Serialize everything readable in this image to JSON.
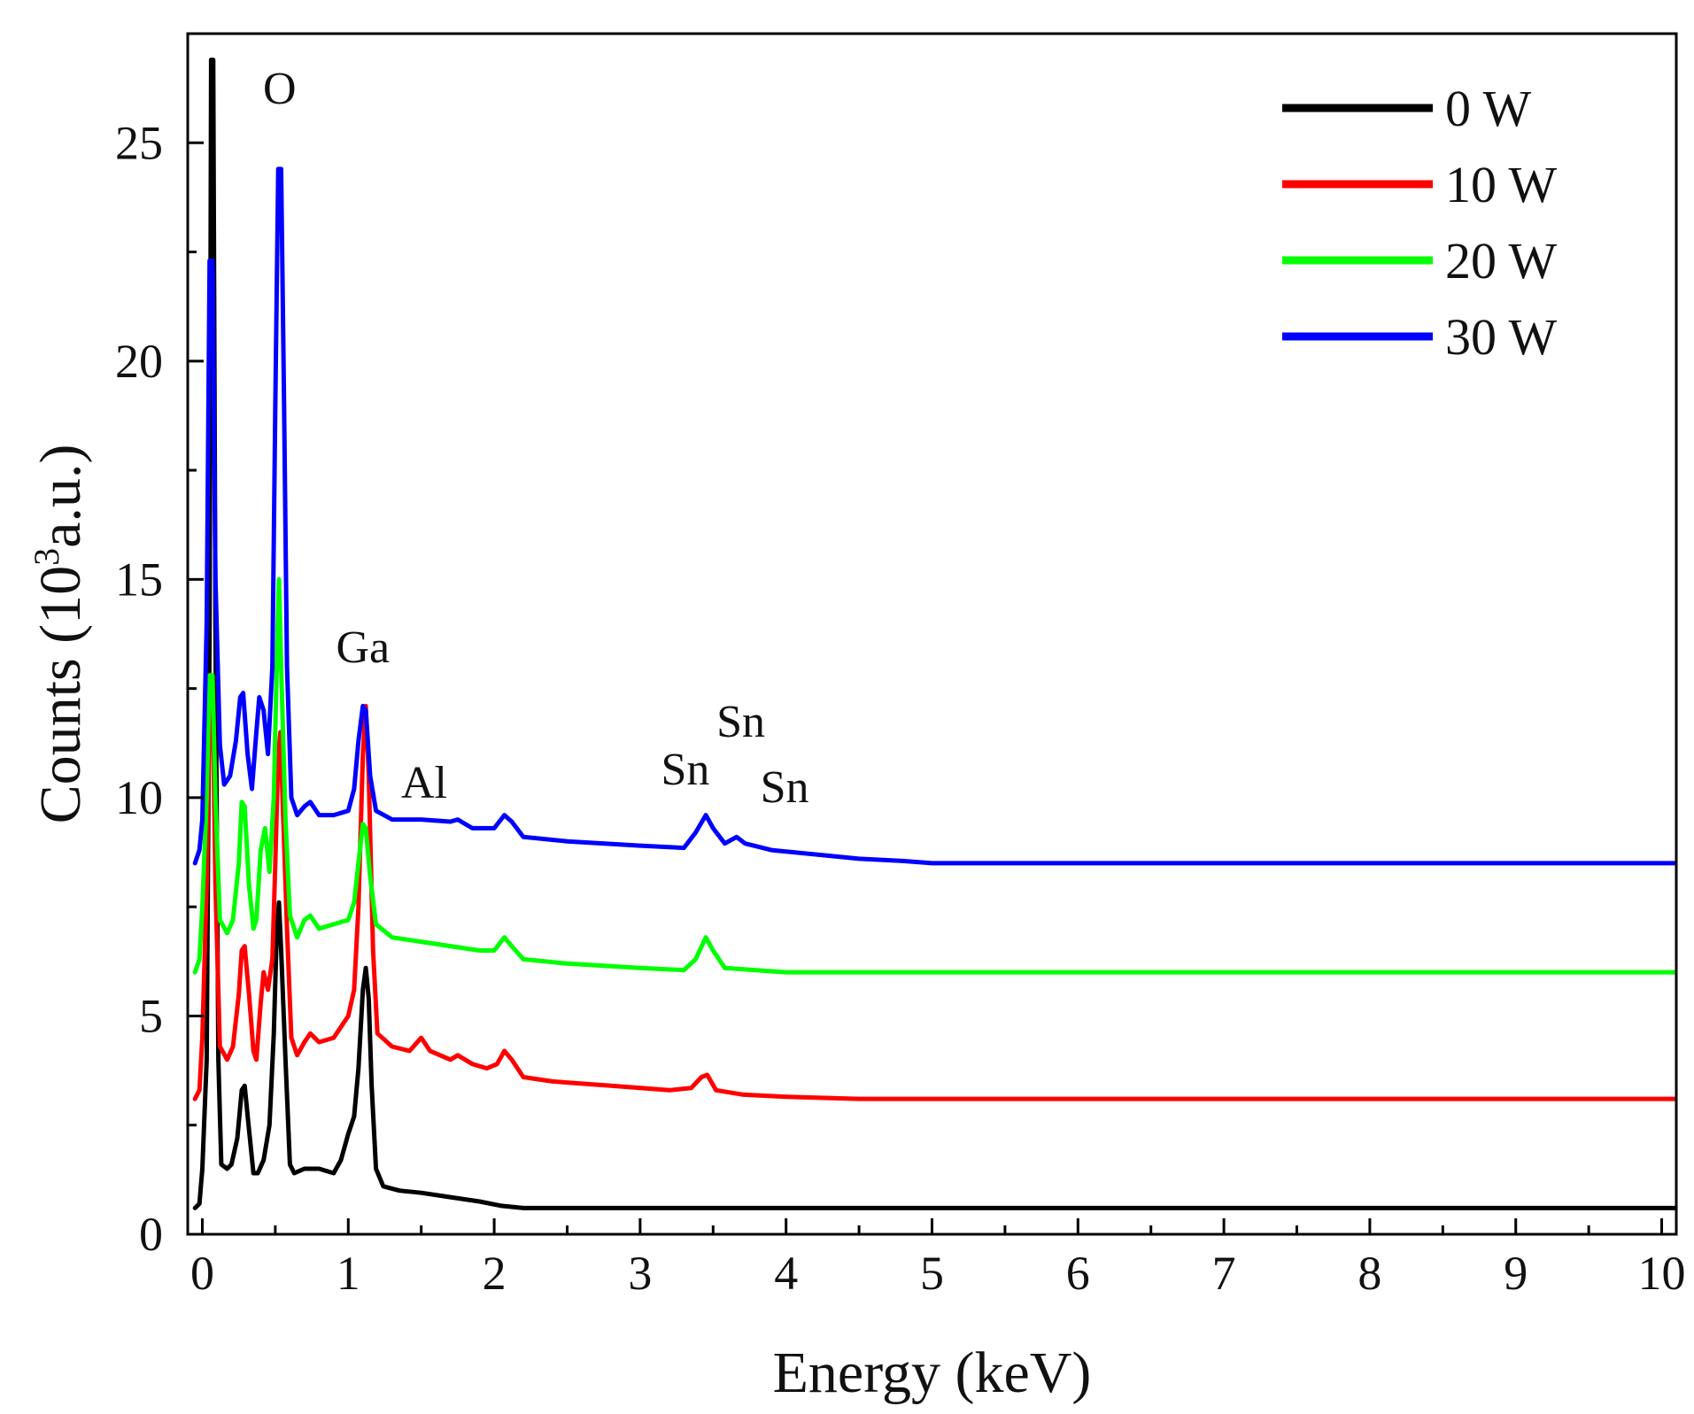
{
  "chart_data": {
    "type": "line",
    "title": "",
    "xlabel": "Energy (keV)",
    "ylabel": {
      "prefix": "Counts (10",
      "sup": "3",
      "suffix": "a.u.)"
    },
    "xlim": [
      -0.1,
      10.1
    ],
    "ylim": [
      0,
      27.5
    ],
    "xticks": [
      0,
      1,
      2,
      3,
      4,
      5,
      6,
      7,
      8,
      9,
      10
    ],
    "yticks": [
      0,
      5,
      10,
      15,
      20,
      25
    ],
    "legend_position": "top-right",
    "grid": false,
    "annotations": [
      {
        "text": "O",
        "x": 0.53,
        "y": 25.9
      },
      {
        "text": "Ga",
        "x": 1.1,
        "y": 13.1
      },
      {
        "text": "Al",
        "x": 1.52,
        "y": 10.0
      },
      {
        "text": "Sn",
        "x": 3.31,
        "y": 10.3
      },
      {
        "text": "Sn",
        "x": 3.69,
        "y": 11.4
      },
      {
        "text": "Sn",
        "x": 3.99,
        "y": 9.9
      }
    ],
    "series": [
      {
        "name": "0 W",
        "color": "#000000",
        "points": [
          [
            -0.05,
            0.6
          ],
          [
            -0.02,
            0.7
          ],
          [
            0.0,
            1.5
          ],
          [
            0.03,
            4
          ],
          [
            0.05,
            14
          ],
          [
            0.06,
            26.9
          ],
          [
            0.075,
            26.9
          ],
          [
            0.09,
            14
          ],
          [
            0.11,
            4
          ],
          [
            0.13,
            1.6
          ],
          [
            0.17,
            1.5
          ],
          [
            0.2,
            1.6
          ],
          [
            0.24,
            2.2
          ],
          [
            0.27,
            3.3
          ],
          [
            0.29,
            3.4
          ],
          [
            0.32,
            2.4
          ],
          [
            0.35,
            1.4
          ],
          [
            0.38,
            1.4
          ],
          [
            0.42,
            1.7
          ],
          [
            0.46,
            2.5
          ],
          [
            0.49,
            4.6
          ],
          [
            0.51,
            6.9
          ],
          [
            0.525,
            7.6
          ],
          [
            0.54,
            6.5
          ],
          [
            0.57,
            4
          ],
          [
            0.6,
            1.6
          ],
          [
            0.63,
            1.4
          ],
          [
            0.7,
            1.5
          ],
          [
            0.8,
            1.5
          ],
          [
            0.9,
            1.4
          ],
          [
            0.95,
            1.7
          ],
          [
            1.0,
            2.3
          ],
          [
            1.04,
            2.7
          ],
          [
            1.07,
            3.8
          ],
          [
            1.1,
            5.6
          ],
          [
            1.12,
            6.1
          ],
          [
            1.14,
            5.4
          ],
          [
            1.16,
            3.4
          ],
          [
            1.19,
            1.5
          ],
          [
            1.24,
            1.1
          ],
          [
            1.35,
            1.0
          ],
          [
            1.5,
            0.95
          ],
          [
            1.7,
            0.85
          ],
          [
            1.9,
            0.75
          ],
          [
            2.05,
            0.65
          ],
          [
            2.2,
            0.6
          ],
          [
            3,
            0.6
          ],
          [
            5,
            0.6
          ],
          [
            8,
            0.6
          ],
          [
            10.1,
            0.6
          ]
        ]
      },
      {
        "name": "10 W",
        "color": "#ff0000",
        "points": [
          [
            -0.05,
            3.1
          ],
          [
            -0.02,
            3.3
          ],
          [
            0.0,
            4.5
          ],
          [
            0.03,
            8
          ],
          [
            0.05,
            12.5
          ],
          [
            0.07,
            12.5
          ],
          [
            0.09,
            8
          ],
          [
            0.12,
            4.3
          ],
          [
            0.17,
            4.0
          ],
          [
            0.21,
            4.3
          ],
          [
            0.25,
            5.5
          ],
          [
            0.27,
            6.5
          ],
          [
            0.29,
            6.6
          ],
          [
            0.32,
            5.5
          ],
          [
            0.35,
            4.2
          ],
          [
            0.37,
            4.0
          ],
          [
            0.4,
            5.3
          ],
          [
            0.42,
            6.0
          ],
          [
            0.45,
            5.6
          ],
          [
            0.48,
            6.3
          ],
          [
            0.5,
            8.5
          ],
          [
            0.52,
            11
          ],
          [
            0.535,
            11.5
          ],
          [
            0.55,
            10
          ],
          [
            0.58,
            7
          ],
          [
            0.61,
            4.5
          ],
          [
            0.65,
            4.1
          ],
          [
            0.7,
            4.4
          ],
          [
            0.74,
            4.6
          ],
          [
            0.8,
            4.4
          ],
          [
            0.9,
            4.5
          ],
          [
            1.0,
            5.0
          ],
          [
            1.04,
            5.6
          ],
          [
            1.07,
            7.5
          ],
          [
            1.1,
            11
          ],
          [
            1.12,
            12.1
          ],
          [
            1.14,
            10.5
          ],
          [
            1.17,
            6.5
          ],
          [
            1.2,
            4.6
          ],
          [
            1.3,
            4.3
          ],
          [
            1.42,
            4.2
          ],
          [
            1.5,
            4.5
          ],
          [
            1.56,
            4.2
          ],
          [
            1.7,
            4.0
          ],
          [
            1.75,
            4.1
          ],
          [
            1.85,
            3.9
          ],
          [
            1.95,
            3.8
          ],
          [
            2.02,
            3.9
          ],
          [
            2.07,
            4.2
          ],
          [
            2.12,
            4.0
          ],
          [
            2.2,
            3.6
          ],
          [
            2.4,
            3.5
          ],
          [
            2.8,
            3.4
          ],
          [
            3.2,
            3.3
          ],
          [
            3.35,
            3.35
          ],
          [
            3.42,
            3.6
          ],
          [
            3.46,
            3.65
          ],
          [
            3.52,
            3.3
          ],
          [
            3.7,
            3.2
          ],
          [
            4.0,
            3.15
          ],
          [
            4.5,
            3.1
          ],
          [
            5,
            3.1
          ],
          [
            8,
            3.1
          ],
          [
            10.1,
            3.1
          ]
        ]
      },
      {
        "name": "20 W",
        "color": "#00ff00",
        "points": [
          [
            -0.05,
            6.0
          ],
          [
            -0.02,
            6.3
          ],
          [
            0.0,
            7.5
          ],
          [
            0.03,
            10
          ],
          [
            0.05,
            12.8
          ],
          [
            0.07,
            12.8
          ],
          [
            0.09,
            10
          ],
          [
            0.12,
            7.2
          ],
          [
            0.17,
            6.9
          ],
          [
            0.21,
            7.2
          ],
          [
            0.25,
            8.5
          ],
          [
            0.27,
            9.9
          ],
          [
            0.29,
            9.8
          ],
          [
            0.32,
            8
          ],
          [
            0.35,
            7.0
          ],
          [
            0.37,
            7.2
          ],
          [
            0.4,
            8.8
          ],
          [
            0.43,
            9.3
          ],
          [
            0.46,
            8.3
          ],
          [
            0.49,
            10
          ],
          [
            0.51,
            13
          ],
          [
            0.525,
            15.0
          ],
          [
            0.54,
            13
          ],
          [
            0.57,
            9.5
          ],
          [
            0.6,
            7.3
          ],
          [
            0.65,
            6.8
          ],
          [
            0.7,
            7.2
          ],
          [
            0.74,
            7.3
          ],
          [
            0.8,
            7.0
          ],
          [
            0.9,
            7.1
          ],
          [
            1.0,
            7.2
          ],
          [
            1.04,
            7.6
          ],
          [
            1.07,
            8.5
          ],
          [
            1.1,
            9.4
          ],
          [
            1.12,
            9.3
          ],
          [
            1.15,
            8.2
          ],
          [
            1.19,
            7.1
          ],
          [
            1.3,
            6.8
          ],
          [
            1.5,
            6.7
          ],
          [
            1.7,
            6.6
          ],
          [
            1.9,
            6.5
          ],
          [
            2.0,
            6.5
          ],
          [
            2.07,
            6.8
          ],
          [
            2.12,
            6.6
          ],
          [
            2.2,
            6.3
          ],
          [
            2.5,
            6.2
          ],
          [
            3.0,
            6.1
          ],
          [
            3.3,
            6.05
          ],
          [
            3.38,
            6.3
          ],
          [
            3.45,
            6.8
          ],
          [
            3.5,
            6.5
          ],
          [
            3.58,
            6.1
          ],
          [
            4.0,
            6.0
          ],
          [
            5,
            6.0
          ],
          [
            8,
            6.0
          ],
          [
            10.1,
            6.0
          ]
        ]
      },
      {
        "name": "30 W",
        "color": "#0000ff",
        "points": [
          [
            -0.05,
            8.5
          ],
          [
            -0.02,
            8.8
          ],
          [
            0.0,
            9.5
          ],
          [
            0.03,
            14
          ],
          [
            0.05,
            22.3
          ],
          [
            0.07,
            22.3
          ],
          [
            0.09,
            15
          ],
          [
            0.12,
            11.2
          ],
          [
            0.15,
            10.3
          ],
          [
            0.19,
            10.5
          ],
          [
            0.23,
            11.3
          ],
          [
            0.26,
            12.3
          ],
          [
            0.28,
            12.4
          ],
          [
            0.31,
            11
          ],
          [
            0.34,
            10.2
          ],
          [
            0.37,
            11.5
          ],
          [
            0.39,
            12.3
          ],
          [
            0.42,
            12.0
          ],
          [
            0.45,
            11
          ],
          [
            0.48,
            13
          ],
          [
            0.5,
            19
          ],
          [
            0.52,
            24.4
          ],
          [
            0.54,
            24.4
          ],
          [
            0.56,
            19
          ],
          [
            0.58,
            13
          ],
          [
            0.61,
            10
          ],
          [
            0.65,
            9.6
          ],
          [
            0.7,
            9.8
          ],
          [
            0.74,
            9.9
          ],
          [
            0.8,
            9.6
          ],
          [
            0.9,
            9.6
          ],
          [
            1.0,
            9.7
          ],
          [
            1.04,
            10.2
          ],
          [
            1.07,
            11.3
          ],
          [
            1.1,
            12.1
          ],
          [
            1.12,
            12.0
          ],
          [
            1.15,
            10.5
          ],
          [
            1.19,
            9.7
          ],
          [
            1.3,
            9.5
          ],
          [
            1.5,
            9.5
          ],
          [
            1.7,
            9.45
          ],
          [
            1.75,
            9.5
          ],
          [
            1.85,
            9.3
          ],
          [
            2.0,
            9.3
          ],
          [
            2.07,
            9.6
          ],
          [
            2.12,
            9.45
          ],
          [
            2.2,
            9.1
          ],
          [
            2.5,
            9.0
          ],
          [
            3.0,
            8.9
          ],
          [
            3.3,
            8.85
          ],
          [
            3.38,
            9.2
          ],
          [
            3.45,
            9.6
          ],
          [
            3.5,
            9.3
          ],
          [
            3.58,
            8.95
          ],
          [
            3.66,
            9.1
          ],
          [
            3.72,
            8.95
          ],
          [
            3.9,
            8.8
          ],
          [
            4.5,
            8.6
          ],
          [
            4.8,
            8.55
          ],
          [
            5,
            8.5
          ],
          [
            8,
            8.5
          ],
          [
            10.1,
            8.5
          ]
        ]
      }
    ]
  }
}
